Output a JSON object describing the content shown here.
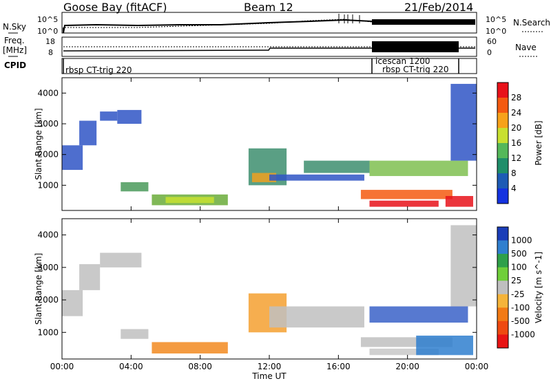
{
  "header": {
    "station": "Goose Bay (fitACF)",
    "beam": "Beam 12",
    "date": "21/Feb/2014"
  },
  "top_panels": {
    "nsky_label": "N.Sky",
    "nsky_ticks": [
      "10^5",
      "10^0"
    ],
    "nsearch_label": "N.Search",
    "nsearch_ticks": [
      "10^5",
      "10^0"
    ],
    "freq_label": "Freq.",
    "freq_unit": "[MHz]",
    "freq_ticks": [
      "18",
      "8"
    ],
    "nave_label": "Nave",
    "nave_ticks": [
      "60",
      "0"
    ],
    "cpid_label": "CPID",
    "cpid_entries": [
      "rbsp CT-trig 220",
      "icescan 1200",
      "rbsp CT-trig 220"
    ]
  },
  "chart_data": [
    {
      "type": "heatmap",
      "name": "Power",
      "ylabel": "Slant Range [km]",
      "yticks": [
        1000,
        2000,
        3000,
        4000
      ],
      "ylim": [
        180,
        4500
      ],
      "xlim_hours": [
        0,
        24
      ],
      "xticks": [
        "00:00",
        "04:00",
        "08:00",
        "12:00",
        "16:00",
        "20:00",
        "00:00"
      ],
      "colorbar": {
        "label": "Power [dB]",
        "ticks": [
          "28",
          "24",
          "20",
          "16",
          "12",
          "8",
          "4"
        ],
        "colors": [
          "#e8121a",
          "#f45a10",
          "#f7a21a",
          "#c8e030",
          "#55b85a",
          "#1f8e6a",
          "#1d5bb5",
          "#1432e0"
        ]
      },
      "regions": [
        {
          "t0": 0.0,
          "t1": 1.2,
          "r0": 1500,
          "r1": 2300,
          "color": "#2f55c6"
        },
        {
          "t0": 1.0,
          "t1": 2.0,
          "r0": 2300,
          "r1": 3100,
          "color": "#2f55c6"
        },
        {
          "t0": 2.2,
          "t1": 3.2,
          "r0": 3100,
          "r1": 3400,
          "color": "#2f55c6"
        },
        {
          "t0": 3.2,
          "t1": 4.6,
          "r0": 3000,
          "r1": 3450,
          "color": "#2f55c6"
        },
        {
          "t0": 3.4,
          "t1": 5.0,
          "r0": 800,
          "r1": 1100,
          "color": "#4a9a5a"
        },
        {
          "t0": 5.2,
          "t1": 9.6,
          "r0": 350,
          "r1": 700,
          "color": "#6aab3a"
        },
        {
          "t0": 6.0,
          "t1": 8.8,
          "r0": 420,
          "r1": 620,
          "color": "#c8e030"
        },
        {
          "t0": 10.8,
          "t1": 13.0,
          "r0": 1000,
          "r1": 2200,
          "color": "#3d8e6e"
        },
        {
          "t0": 11.0,
          "t1": 12.4,
          "r0": 1100,
          "r1": 1400,
          "color": "#f0a020"
        },
        {
          "t0": 12.0,
          "t1": 17.5,
          "r0": 1150,
          "r1": 1350,
          "color": "#2f55c6"
        },
        {
          "t0": 14.0,
          "t1": 17.8,
          "r0": 1400,
          "r1": 1800,
          "color": "#3d8e6e"
        },
        {
          "t0": 17.8,
          "t1": 23.5,
          "r0": 1300,
          "r1": 1800,
          "color": "#7fbf50"
        },
        {
          "t0": 17.3,
          "t1": 22.6,
          "r0": 550,
          "r1": 850,
          "color": "#f45a10"
        },
        {
          "t0": 17.8,
          "t1": 21.8,
          "r0": 300,
          "r1": 500,
          "color": "#e8121a"
        },
        {
          "t0": 22.2,
          "t1": 23.8,
          "r0": 300,
          "r1": 650,
          "color": "#e8121a"
        },
        {
          "t0": 22.5,
          "t1": 24.0,
          "r0": 1800,
          "r1": 4300,
          "color": "#2f55c6"
        }
      ]
    },
    {
      "type": "heatmap",
      "name": "Velocity",
      "ylabel": "Slant Range [km]",
      "yticks": [
        1000,
        2000,
        3000,
        4000
      ],
      "ylim": [
        180,
        4500
      ],
      "xlim_hours": [
        0,
        24
      ],
      "xticks": [
        "00:00",
        "04:00",
        "08:00",
        "12:00",
        "16:00",
        "20:00",
        "00:00"
      ],
      "xlabel": "Time UT",
      "colorbar": {
        "label": "Velocity [m s^-1]",
        "ticks": [
          "1000",
          "500",
          "100",
          "25",
          "-25",
          "-100",
          "-500",
          "-1000"
        ],
        "colors": [
          "#1a3db8",
          "#2f7fcf",
          "#2fa04a",
          "#70cf3a",
          "#bfbfbf",
          "#f5b43a",
          "#f27a14",
          "#ef4a10",
          "#e81414"
        ]
      },
      "regions": [
        {
          "t0": 0.0,
          "t1": 1.2,
          "r0": 1500,
          "r1": 2300,
          "color": "#c0c0c0"
        },
        {
          "t0": 1.0,
          "t1": 2.2,
          "r0": 2300,
          "r1": 3100,
          "color": "#c0c0c0"
        },
        {
          "t0": 2.2,
          "t1": 4.6,
          "r0": 3000,
          "r1": 3450,
          "color": "#c0c0c0"
        },
        {
          "t0": 3.4,
          "t1": 5.0,
          "r0": 800,
          "r1": 1100,
          "color": "#c0c0c0"
        },
        {
          "t0": 5.2,
          "t1": 9.6,
          "r0": 350,
          "r1": 700,
          "color": "#f28a20"
        },
        {
          "t0": 10.8,
          "t1": 13.0,
          "r0": 1000,
          "r1": 2200,
          "color": "#f5a030"
        },
        {
          "t0": 12.0,
          "t1": 17.5,
          "r0": 1150,
          "r1": 1800,
          "color": "#c0c0c0"
        },
        {
          "t0": 17.8,
          "t1": 23.5,
          "r0": 1300,
          "r1": 1800,
          "color": "#3a62c8"
        },
        {
          "t0": 17.3,
          "t1": 22.6,
          "r0": 550,
          "r1": 850,
          "color": "#c0c0c0"
        },
        {
          "t0": 17.8,
          "t1": 21.8,
          "r0": 300,
          "r1": 500,
          "color": "#c8c8c8"
        },
        {
          "t0": 20.5,
          "t1": 23.8,
          "r0": 300,
          "r1": 900,
          "color": "#2f7fcf"
        },
        {
          "t0": 22.5,
          "t1": 24.0,
          "r0": 1800,
          "r1": 4300,
          "color": "#c0c0c0"
        }
      ]
    }
  ]
}
